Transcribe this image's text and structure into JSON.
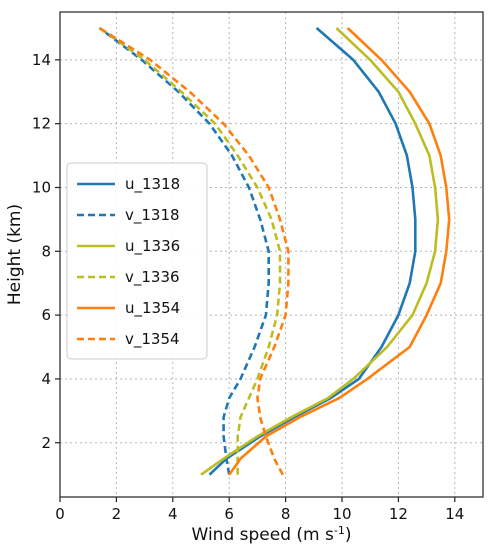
{
  "chart_data": {
    "type": "line",
    "title": "",
    "xlabel": "Wind speed (m s",
    "xlabel_sup": "-1",
    "xlabel_close": ")",
    "ylabel": "Height (km)",
    "xlim": [
      0,
      15
    ],
    "ylim": [
      0.3,
      15.5
    ],
    "xticks": [
      0,
      2,
      4,
      6,
      8,
      10,
      12,
      14
    ],
    "yticks": [
      2,
      4,
      6,
      8,
      10,
      12,
      14
    ],
    "grid": true,
    "legend_position": "left",
    "series": [
      {
        "name": "u_1318",
        "color": "#1f77b4",
        "dash": false,
        "x": [
          5.3,
          5.9,
          7.1,
          8.3,
          9.6,
          10.6,
          11.4,
          12.0,
          12.4,
          12.6,
          12.6,
          12.5,
          12.3,
          11.9,
          11.3,
          10.4,
          9.1
        ],
        "y": [
          1.0,
          1.5,
          2.2,
          2.8,
          3.4,
          4.0,
          5.0,
          6.0,
          7.0,
          8.0,
          9.0,
          10.0,
          11.0,
          12.0,
          13.0,
          14.0,
          15.0
        ]
      },
      {
        "name": "v_1318",
        "color": "#1f77b4",
        "dash": true,
        "x": [
          6.0,
          5.9,
          5.8,
          5.8,
          6.0,
          6.4,
          6.9,
          7.3,
          7.4,
          7.4,
          7.1,
          6.7,
          6.1,
          5.3,
          4.2,
          2.9,
          1.4
        ],
        "y": [
          1.0,
          1.5,
          2.2,
          2.8,
          3.4,
          4.0,
          5.0,
          6.0,
          7.0,
          8.0,
          9.0,
          10.0,
          11.0,
          12.0,
          13.0,
          14.0,
          15.0
        ]
      },
      {
        "name": "u_1336",
        "color": "#bcbd22",
        "dash": false,
        "x": [
          5.0,
          5.8,
          7.0,
          8.2,
          9.5,
          10.4,
          11.6,
          12.5,
          13.0,
          13.3,
          13.4,
          13.3,
          13.1,
          12.6,
          12.0,
          11.0,
          9.8
        ],
        "y": [
          1.0,
          1.5,
          2.2,
          2.8,
          3.4,
          4.0,
          5.0,
          6.0,
          7.0,
          8.0,
          9.0,
          10.0,
          11.0,
          12.0,
          13.0,
          14.0,
          15.0
        ]
      },
      {
        "name": "v_1336",
        "color": "#bcbd22",
        "dash": true,
        "x": [
          6.3,
          6.3,
          6.3,
          6.4,
          6.7,
          7.0,
          7.4,
          7.7,
          7.8,
          7.8,
          7.5,
          7.0,
          6.3,
          5.5,
          4.3,
          3.0,
          1.4
        ],
        "y": [
          1.0,
          1.5,
          2.2,
          2.8,
          3.4,
          4.0,
          5.0,
          6.0,
          7.0,
          8.0,
          9.0,
          10.0,
          11.0,
          12.0,
          13.0,
          14.0,
          15.0
        ]
      },
      {
        "name": "u_1354",
        "color": "#ff7f0e",
        "dash": false,
        "x": [
          6.0,
          6.4,
          7.3,
          8.5,
          9.9,
          10.9,
          12.4,
          13.0,
          13.5,
          13.7,
          13.8,
          13.7,
          13.5,
          13.1,
          12.4,
          11.4,
          10.2
        ],
        "y": [
          1.0,
          1.5,
          2.2,
          2.8,
          3.4,
          4.0,
          5.0,
          6.0,
          7.0,
          8.0,
          9.0,
          10.0,
          11.0,
          12.0,
          13.0,
          14.0,
          15.0
        ]
      },
      {
        "name": "v_1354",
        "color": "#ff7f0e",
        "dash": true,
        "x": [
          7.9,
          7.6,
          7.3,
          7.1,
          7.0,
          7.1,
          7.6,
          8.0,
          8.1,
          8.1,
          7.8,
          7.4,
          6.7,
          5.8,
          4.6,
          3.2,
          1.4
        ],
        "y": [
          1.0,
          1.5,
          2.2,
          2.8,
          3.4,
          4.0,
          5.0,
          6.0,
          7.0,
          8.0,
          9.0,
          10.0,
          11.0,
          12.0,
          13.0,
          14.0,
          15.0
        ]
      }
    ]
  }
}
